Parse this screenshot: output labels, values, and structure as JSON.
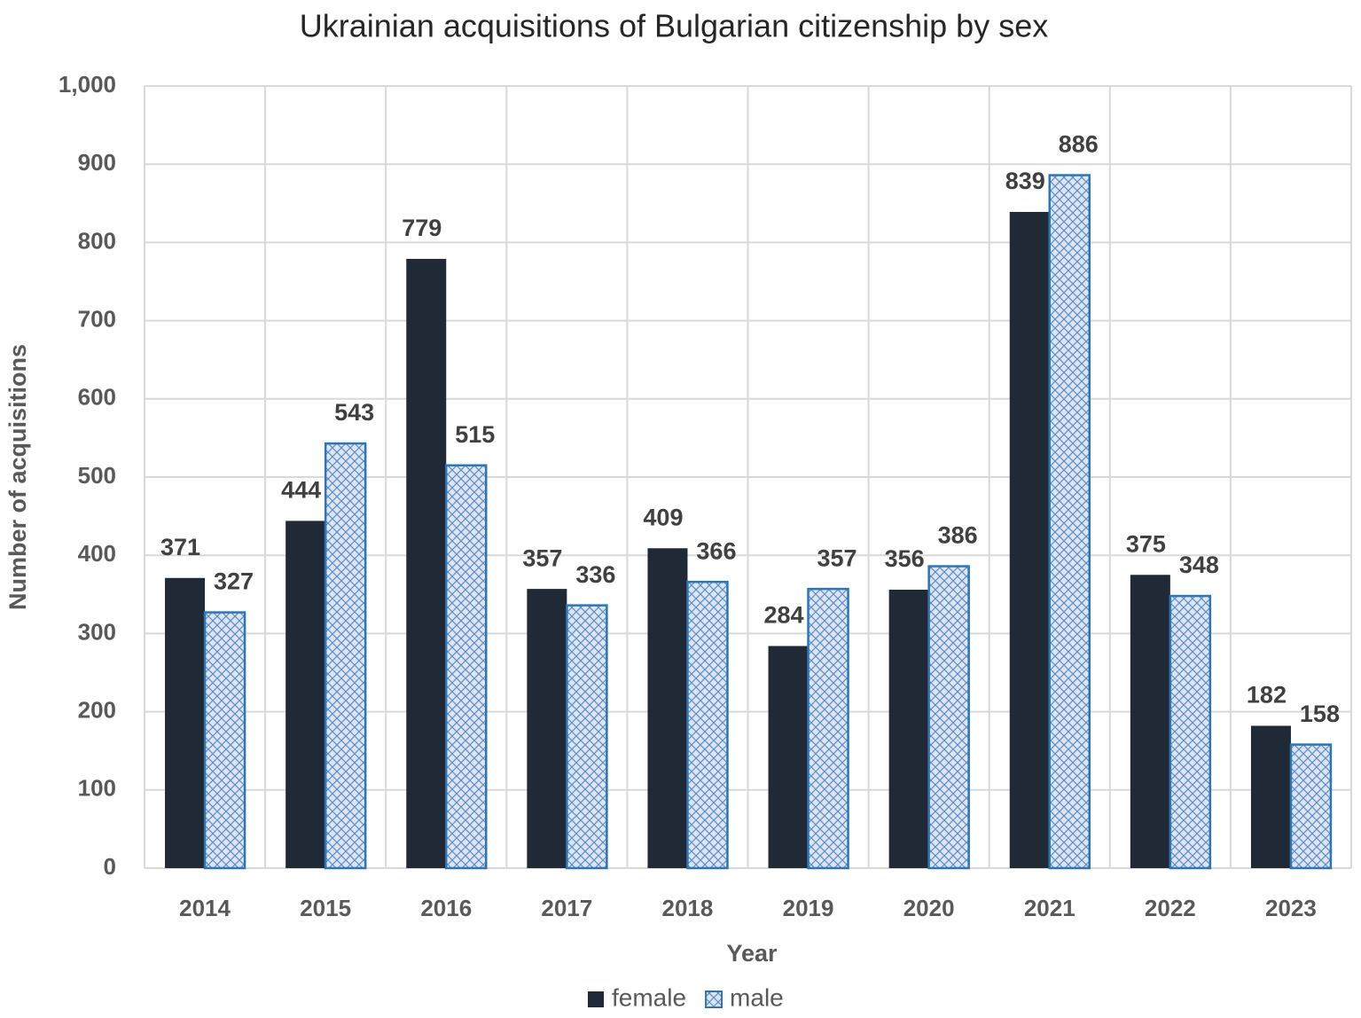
{
  "chart_data": {
    "type": "bar",
    "title": "Ukrainian acquisitions of Bulgarian citizenship by sex",
    "x_label": "Year",
    "y_label": "Number of acquisitions",
    "categories": [
      "2014",
      "2015",
      "2016",
      "2017",
      "2018",
      "2019",
      "2020",
      "2021",
      "2022",
      "2023"
    ],
    "series": [
      {
        "name": "female",
        "color": "#1f2a36",
        "values": [
          371,
          444,
          779,
          357,
          409,
          284,
          356,
          839,
          375,
          182
        ]
      },
      {
        "name": "male",
        "color": "#2e75b6",
        "hatch": "cross",
        "values": [
          327,
          543,
          515,
          336,
          366,
          357,
          386,
          886,
          348,
          158
        ]
      }
    ],
    "ylim": [
      0,
      1000
    ],
    "yticks": [
      0,
      100,
      200,
      300,
      400,
      500,
      600,
      700,
      800,
      900,
      {
        "value": 1000,
        "label": "1,000"
      }
    ],
    "grid": true,
    "legend": "bottom"
  }
}
